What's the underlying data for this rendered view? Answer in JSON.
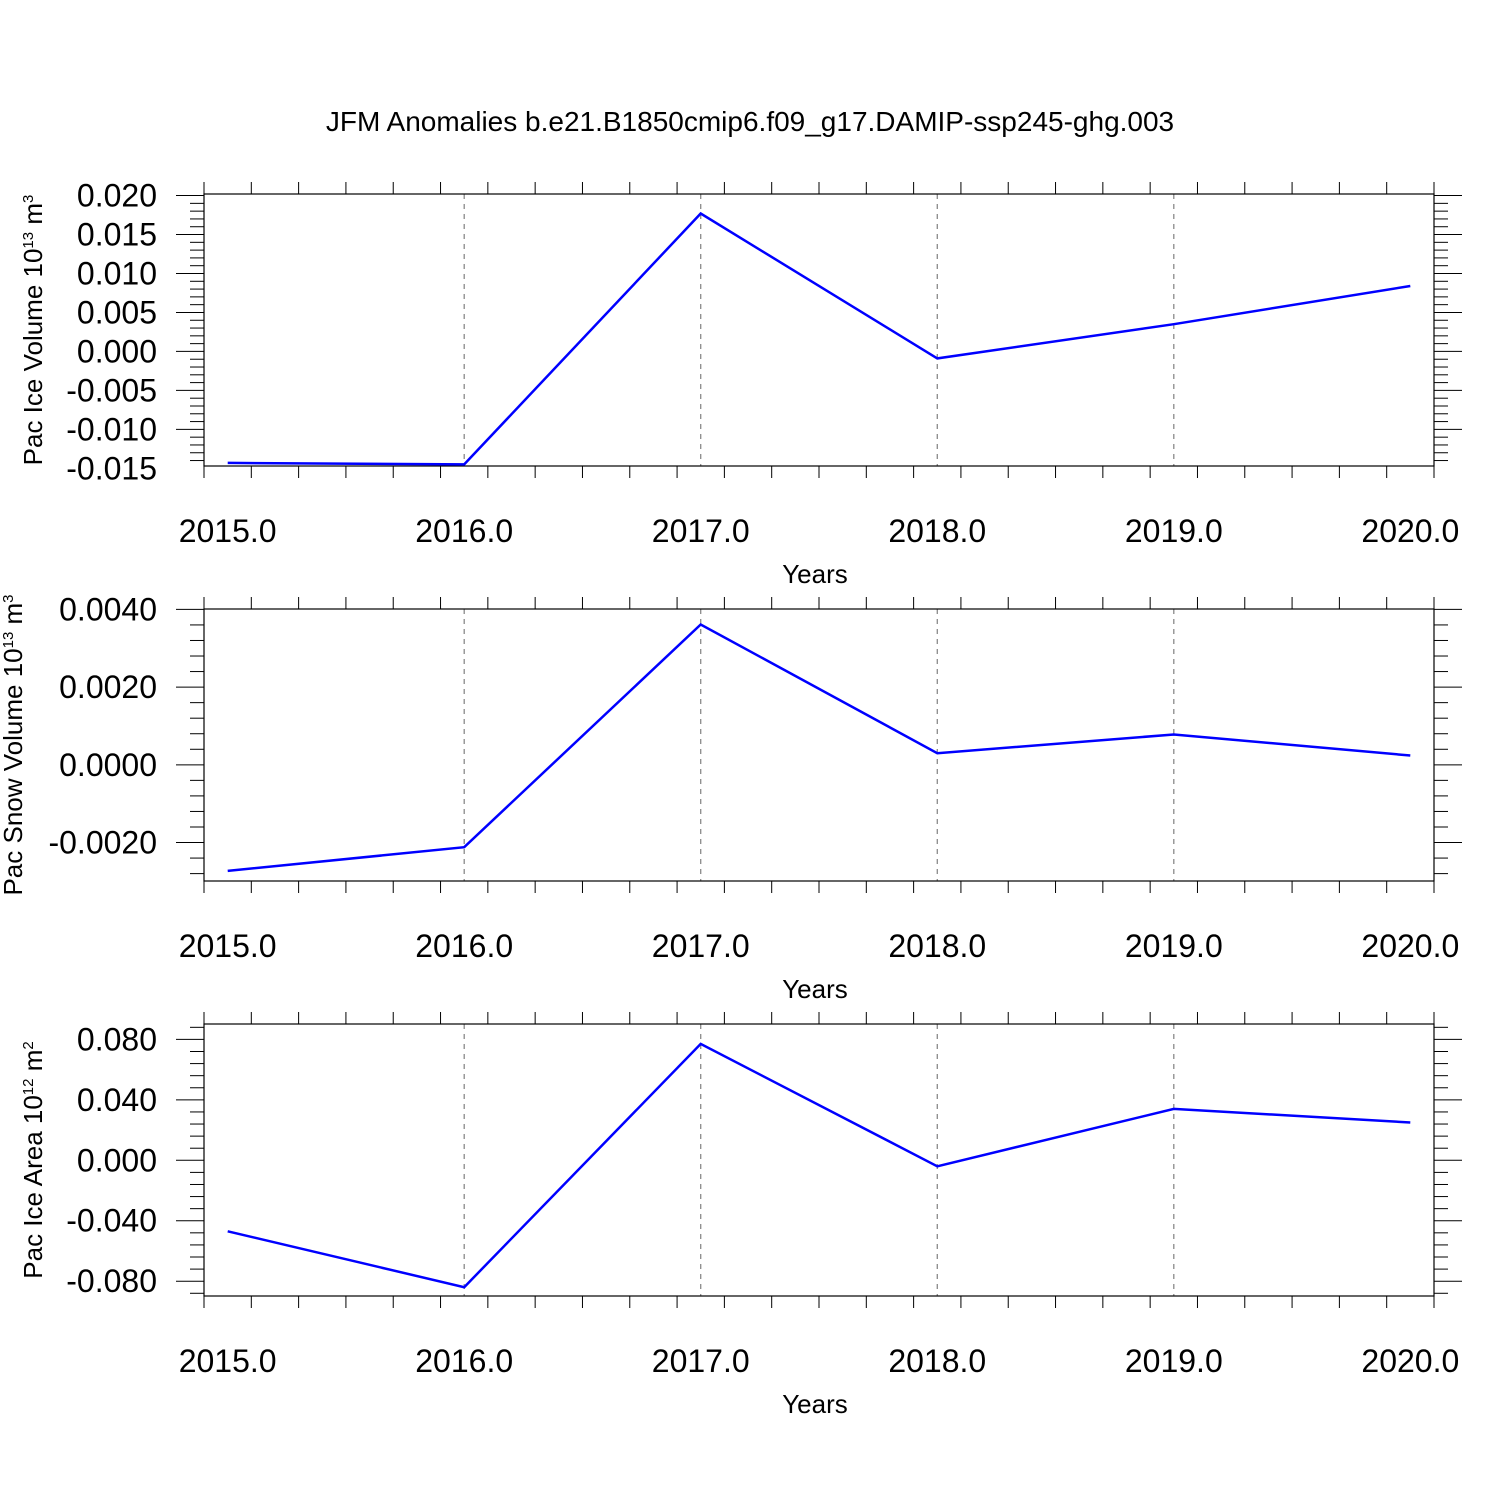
{
  "figure": {
    "title": "JFM Anomalies b.e21.B1850cmip6.f09_g17.DAMIP-ssp245-ghg.003"
  },
  "colors": {
    "line": "#0000ff",
    "axes": "#000000",
    "grid": "#808080"
  },
  "chart_data": [
    {
      "type": "line",
      "title": "",
      "xlabel": "Years",
      "ylabel": {
        "text": "Pac Ice Volume 10",
        "exp": "13",
        "unit": " m",
        "unit_exp": "3"
      },
      "x": [
        2015,
        2016,
        2017,
        2018,
        2019,
        2020
      ],
      "x_tick_labels": [
        "2015.0",
        "2016.0",
        "2017.0",
        "2018.0",
        "2019.0",
        "2020.0"
      ],
      "xlim": [
        2014.9,
        2020.1
      ],
      "ylim": [
        -0.0147,
        0.0202
      ],
      "y_ticks": [
        0.02,
        0.015,
        0.01,
        0.005,
        0.0,
        -0.005,
        -0.01,
        -0.015
      ],
      "y_tick_labels": [
        "0.020",
        "0.015",
        "0.010",
        "0.005",
        "0.000",
        "-0.005",
        "-0.010",
        "-0.015"
      ],
      "y_minor_step": 0.001,
      "series": [
        {
          "values": [
            -0.0143,
            -0.0145,
            0.0177,
            -0.0009,
            0.0035,
            0.0084
          ]
        }
      ],
      "grid": "x-only dashed"
    },
    {
      "type": "line",
      "title": "",
      "xlabel": "Years",
      "ylabel": {
        "text": "Pac Snow Volume 10",
        "exp": "13",
        "unit": " m",
        "unit_exp": "3"
      },
      "x": [
        2015,
        2016,
        2017,
        2018,
        2019,
        2020
      ],
      "x_tick_labels": [
        "2015.0",
        "2016.0",
        "2017.0",
        "2018.0",
        "2019.0",
        "2020.0"
      ],
      "xlim": [
        2014.9,
        2020.1
      ],
      "ylim": [
        -0.00299,
        0.00401
      ],
      "y_ticks": [
        0.004,
        0.002,
        0.0,
        -0.002
      ],
      "y_tick_labels": [
        "0.0040",
        "0.0020",
        "0.0000",
        "-0.0020"
      ],
      "y_minor_step": 0.0004,
      "series": [
        {
          "values": [
            -0.00273,
            -0.00212,
            0.00361,
            0.0003,
            0.00078,
            0.00024
          ]
        }
      ],
      "grid": "x-only dashed"
    },
    {
      "type": "line",
      "title": "",
      "xlabel": "Years",
      "ylabel": {
        "text": "Pac Ice Area 10",
        "exp": "12",
        "unit": " m",
        "unit_exp": "2"
      },
      "x": [
        2015,
        2016,
        2017,
        2018,
        2019,
        2020
      ],
      "x_tick_labels": [
        "2015.0",
        "2016.0",
        "2017.0",
        "2018.0",
        "2019.0",
        "2020.0"
      ],
      "xlim": [
        2014.9,
        2020.1
      ],
      "ylim": [
        -0.0898,
        0.0902
      ],
      "y_ticks": [
        0.08,
        0.04,
        0.0,
        -0.04,
        -0.08
      ],
      "y_tick_labels": [
        "0.080",
        "0.040",
        "0.000",
        "-0.040",
        "-0.080"
      ],
      "y_minor_step": 0.008,
      "series": [
        {
          "values": [
            -0.047,
            -0.084,
            0.077,
            -0.004,
            0.034,
            0.025
          ]
        }
      ],
      "grid": "x-only dashed"
    }
  ]
}
